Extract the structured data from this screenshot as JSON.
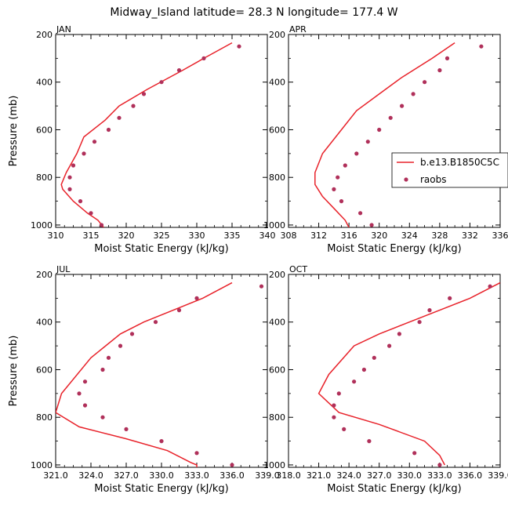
{
  "figure": {
    "title": "Midway_Island  latitude= 28.3 N longitude= 177.4 W",
    "line_color": "#e8222a",
    "dot_color": "#b0305a"
  },
  "legend": {
    "model_label": "b.e13.B1850C5C",
    "obs_label": "raobs"
  },
  "chart_data": [
    {
      "type": "line",
      "panel": "JAN",
      "xlabel": "Moist Static Energy (kJ/kg)",
      "ylabel": "Pressure (mb)",
      "xlim": [
        310,
        340
      ],
      "ylim": [
        1010,
        200
      ],
      "xticks": [
        "310",
        "315",
        "320",
        "325",
        "330",
        "335",
        "340"
      ],
      "yticks": [
        "200",
        "400",
        "600",
        "800",
        "1000"
      ],
      "series": [
        {
          "name": "b.e13.B1850C5C",
          "x": [
            335.0,
            331.0,
            328.0,
            323.0,
            319.0,
            317.0,
            314.0,
            313.0,
            311.5,
            310.8,
            311.0,
            312.5,
            314.5,
            316.0,
            316.8
          ],
          "y": [
            235,
            300,
            350,
            430,
            500,
            560,
            630,
            700,
            780,
            830,
            850,
            900,
            950,
            980,
            1010
          ]
        },
        {
          "name": "raobs",
          "x": [
            336.0,
            331.0,
            327.5,
            325.0,
            322.5,
            321.0,
            319.0,
            317.5,
            315.5,
            314.0,
            312.5,
            312.0,
            312.0,
            313.5,
            315.0,
            316.5
          ],
          "y": [
            250,
            300,
            350,
            400,
            450,
            500,
            550,
            600,
            650,
            700,
            750,
            800,
            850,
            900,
            950,
            1000
          ]
        }
      ]
    },
    {
      "type": "line",
      "panel": "APR",
      "xlabel": "Moist Static Energy (kJ/kg)",
      "ylabel": "",
      "xlim": [
        308,
        336
      ],
      "ylim": [
        1010,
        200
      ],
      "xticks": [
        "308",
        "312",
        "316",
        "320",
        "324",
        "328",
        "332",
        "336"
      ],
      "yticks": [
        "200",
        "400",
        "600",
        "800",
        "1000"
      ],
      "series": [
        {
          "name": "b.e13.B1850C5C",
          "x": [
            330.0,
            327.0,
            323.0,
            320.0,
            317.0,
            315.0,
            312.5,
            311.5,
            311.5,
            312.5,
            314.0,
            315.5,
            316.0
          ],
          "y": [
            235,
            300,
            380,
            450,
            520,
            600,
            700,
            780,
            830,
            880,
            930,
            980,
            1010
          ]
        },
        {
          "name": "raobs",
          "x": [
            333.5,
            329.0,
            328.0,
            326.0,
            324.5,
            323.0,
            321.5,
            320.0,
            318.5,
            317.0,
            315.5,
            314.5,
            314.0,
            315.0,
            317.5,
            319.0
          ],
          "y": [
            250,
            300,
            350,
            400,
            450,
            500,
            550,
            600,
            650,
            700,
            750,
            800,
            850,
            900,
            950,
            1000
          ]
        }
      ]
    },
    {
      "type": "line",
      "panel": "JUL",
      "xlabel": "Moist Static Energy (kJ/kg)",
      "ylabel": "Pressure (mb)",
      "xlim": [
        321,
        339
      ],
      "ylim": [
        1010,
        200
      ],
      "xticks": [
        "321.0",
        "324.0",
        "327.0",
        "330.0",
        "333.0",
        "336.0",
        "339.0"
      ],
      "yticks": [
        "200",
        "400",
        "600",
        "800",
        "1000"
      ],
      "series": [
        {
          "name": "b.e13.B1850C5C",
          "x": [
            336.0,
            333.5,
            331.0,
            328.5,
            326.5,
            324.0,
            321.5,
            321.0,
            323.0,
            327.0,
            330.5,
            332.5,
            333.0,
            333.0
          ],
          "y": [
            235,
            300,
            350,
            400,
            450,
            550,
            700,
            780,
            840,
            890,
            940,
            990,
            1000,
            1010
          ]
        },
        {
          "name": "raobs",
          "x": [
            338.5,
            333.0,
            331.5,
            329.5,
            327.5,
            326.5,
            325.5,
            325.0,
            323.5,
            323.0,
            323.5,
            325.0,
            327.0,
            330.0,
            333.0,
            336.0
          ],
          "y": [
            250,
            300,
            350,
            400,
            450,
            500,
            550,
            600,
            650,
            700,
            750,
            800,
            850,
            900,
            950,
            1000
          ]
        }
      ]
    },
    {
      "type": "line",
      "panel": "OCT",
      "xlabel": "Moist Static Energy (kJ/kg)",
      "ylabel": "",
      "xlim": [
        318,
        339
      ],
      "ylim": [
        1010,
        200
      ],
      "xticks": [
        "318.0",
        "321.0",
        "324.0",
        "327.0",
        "330.0",
        "333.0",
        "336.0",
        "339.0"
      ],
      "yticks": [
        "200",
        "400",
        "600",
        "800",
        "1000"
      ],
      "series": [
        {
          "name": "b.e13.B1850C5C",
          "x": [
            339.0,
            336.0,
            333.0,
            330.0,
            327.0,
            324.5,
            322.0,
            321.0,
            323.0,
            327.0,
            331.5,
            333.0,
            333.5
          ],
          "y": [
            235,
            300,
            350,
            400,
            450,
            500,
            620,
            700,
            780,
            830,
            900,
            960,
            1000
          ]
        },
        {
          "name": "raobs",
          "x": [
            338.0,
            334.0,
            332.0,
            331.0,
            329.0,
            328.0,
            326.5,
            325.5,
            324.5,
            323.0,
            322.5,
            322.5,
            323.5,
            326.0,
            330.5,
            333.0
          ],
          "y": [
            250,
            300,
            350,
            400,
            450,
            500,
            550,
            600,
            650,
            700,
            750,
            800,
            850,
            900,
            950,
            1000
          ]
        }
      ]
    }
  ]
}
